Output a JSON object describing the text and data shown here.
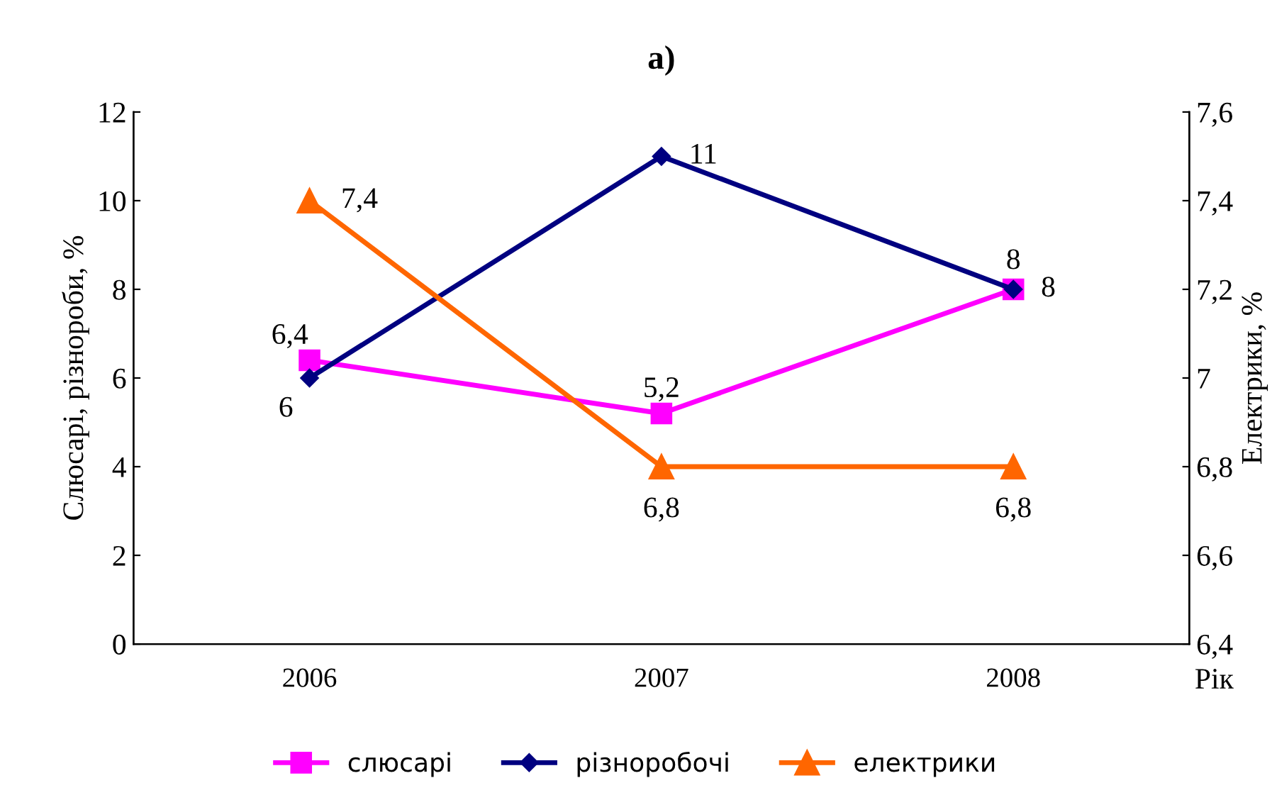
{
  "chart_data": {
    "type": "line",
    "title": "а)",
    "ylabel": "Слюсарі, різнороби, %",
    "y2label": "Електрики, %",
    "xlabel": "Рік",
    "categories": [
      "2006",
      "2007",
      "2008"
    ],
    "series": [
      {
        "name": "слюсарі",
        "color": "#ff00ff",
        "marker": "square",
        "values": [
          6.4,
          5.2,
          8
        ],
        "value_labels": [
          "6,4",
          "5,2",
          "8"
        ]
      },
      {
        "name": "різноробочі",
        "color": "#000080",
        "marker": "diamond",
        "values": [
          6,
          11,
          8
        ],
        "value_labels": [
          "6",
          "11",
          "8"
        ]
      },
      {
        "name": "електрики",
        "color": "#ff6600",
        "marker": "triangle",
        "axis": "y2",
        "values": [
          7.4,
          6.8,
          6.8
        ],
        "value_labels": [
          "7,4",
          "6,8",
          "6,8"
        ]
      }
    ],
    "ylim": [
      0,
      12
    ],
    "yticks": [
      0,
      2,
      4,
      6,
      8,
      10,
      12
    ],
    "y2lim": [
      6.4,
      7.6
    ],
    "y2ticks": [
      {
        "value": 6.4,
        "label": "6,4"
      },
      {
        "value": 6.6,
        "label": "6,6"
      },
      {
        "value": 6.8,
        "label": "6,8"
      },
      {
        "value": 7.0,
        "label": "7"
      },
      {
        "value": 7.2,
        "label": "7,2"
      },
      {
        "value": 7.4,
        "label": "7,4"
      },
      {
        "value": 7.6,
        "label": "7,6"
      }
    ],
    "legend": "bottom",
    "grid": false
  }
}
